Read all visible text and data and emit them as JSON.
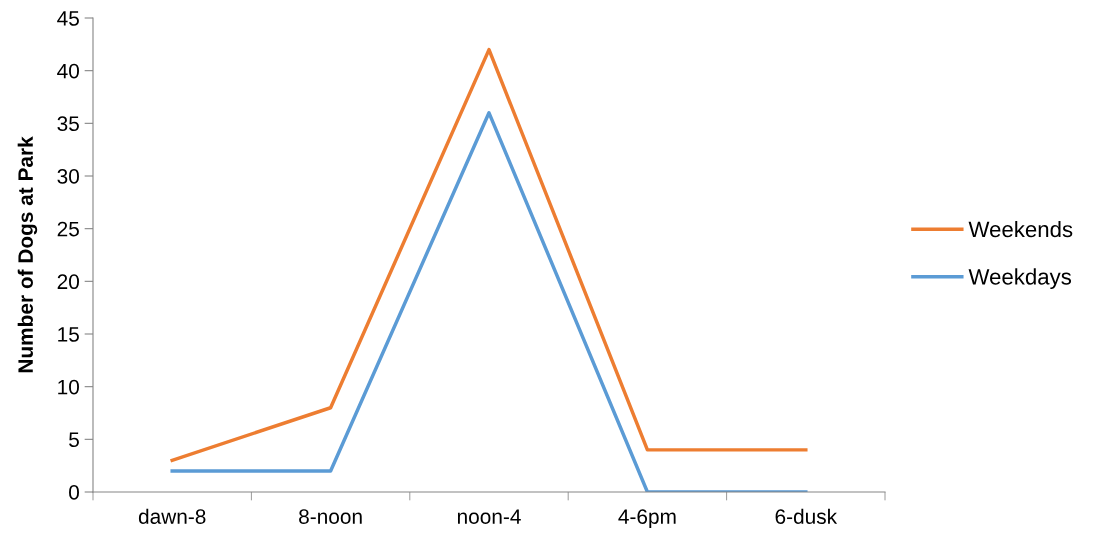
{
  "chart_data": {
    "type": "line",
    "ylabel": "Number of Dogs at Park",
    "categories": [
      "dawn-8",
      "8-noon",
      "noon-4",
      "4-6pm",
      "6-dusk"
    ],
    "series": [
      {
        "name": "Weekends",
        "color": "#ed7d31",
        "values": [
          3,
          8,
          42,
          4,
          4
        ]
      },
      {
        "name": "Weekdays",
        "color": "#5b9bd5",
        "values": [
          2,
          2,
          36,
          0,
          0
        ]
      }
    ],
    "ylim": [
      0,
      45
    ],
    "yticks": [
      0,
      5,
      10,
      15,
      20,
      25,
      30,
      35,
      40,
      45
    ],
    "grid": false,
    "legend": "right",
    "marker": "none",
    "line_style": "solid"
  }
}
